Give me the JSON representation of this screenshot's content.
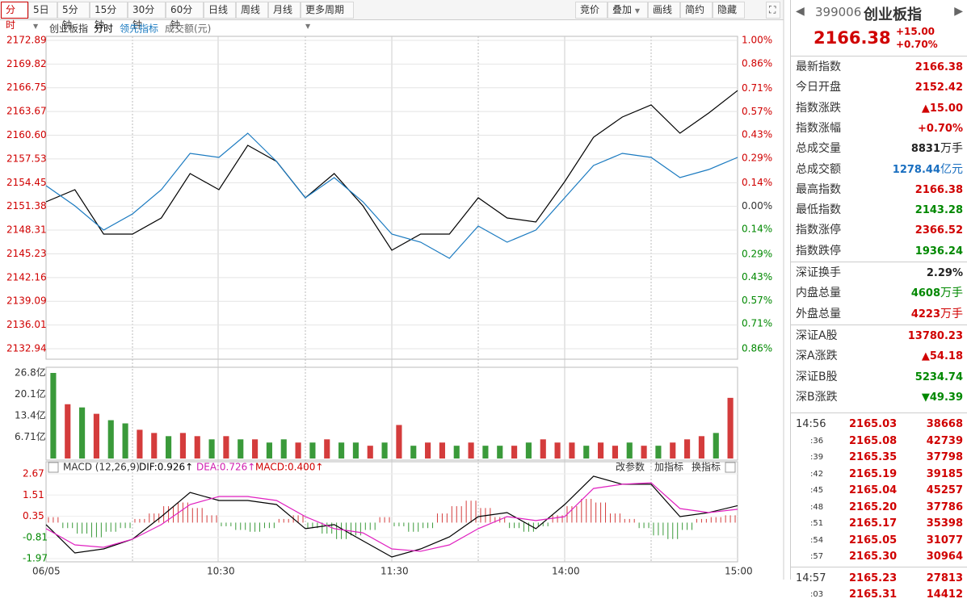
{
  "toolbar": {
    "periods": [
      "分时",
      "5日",
      "5分钟",
      "15分钟",
      "30分钟",
      "60分钟",
      "日线",
      "周线",
      "月线",
      "更多周期"
    ],
    "tools": [
      "竞价",
      "叠加",
      "画线",
      "简约",
      "隐藏"
    ]
  },
  "chart": {
    "legend": [
      "创业板指",
      "分时",
      "领先指标",
      "成交额(元)"
    ],
    "price": {
      "ylim": [
        2132.94,
        2172.89
      ],
      "yticks": [
        2172.89,
        2169.82,
        2166.75,
        2163.67,
        {
          "value": 2160.6,
          "label": "2160.60"
        },
        2157.53,
        2154.45,
        2151.38,
        2148.31,
        2145.23,
        2142.16,
        2139.09,
        2136.01,
        2132.94
      ],
      "y2lim": [
        -0.86,
        1.0
      ],
      "y2ticks": [
        {
          "value": 1.0,
          "label": "1.00%"
        },
        {
          "value": 0.86,
          "label": "0.86%"
        },
        {
          "value": 0.71,
          "label": "0.71%"
        },
        {
          "value": 0.57,
          "label": "0.57%"
        },
        {
          "value": 0.43,
          "label": "0.43%"
        },
        {
          "value": 0.29,
          "label": "0.29%"
        },
        {
          "value": 0.14,
          "label": "0.14%"
        },
        {
          "value": 0,
          "label": "0.00%"
        },
        {
          "value": -0.14,
          "label": "0.14%"
        },
        {
          "value": -0.29,
          "label": "0.29%"
        },
        {
          "value": -0.43,
          "label": "0.43%"
        },
        {
          "value": -0.57,
          "label": "0.57%"
        },
        {
          "value": -0.71,
          "label": "0.71%"
        },
        {
          "value": -0.86,
          "label": "0.86%"
        }
      ],
      "series": [
        {
          "name": "分时",
          "color": "#000000",
          "values": [
            2151.97,
            2153.54,
            2147.79,
            2147.79,
            2149.88,
            2155.63,
            2153.54,
            2159.29,
            2157.2,
            2152.5,
            2155.63,
            2151.45,
            2145.7,
            2147.79,
            2147.79,
            2152.5,
            2149.88,
            2149.36,
            2154.59,
            2160.34,
            2162.95,
            2164.52,
            2160.86,
            2163.48,
            2166.38
          ]
        },
        {
          "name": "领先指标",
          "color": "#1a7ac0",
          "values": [
            2154.07,
            2151.45,
            2148.31,
            2150.41,
            2153.54,
            2158.25,
            2157.73,
            2160.86,
            2157.2,
            2152.5,
            2155.11,
            2151.97,
            2147.79,
            2146.74,
            2144.65,
            2148.84,
            2146.74,
            2148.31,
            2152.5,
            2156.68,
            2158.25,
            2157.73,
            2155.11,
            2156.16,
            2157.73
          ]
        }
      ]
    },
    "volume": {
      "ylim": [
        0,
        26.8
      ],
      "yticks": [
        {
          "value": 26.8,
          "label": "26.8亿"
        },
        {
          "value": 20.1,
          "label": "20.1亿"
        },
        {
          "value": 13.4,
          "label": "13.4亿"
        },
        {
          "value": 6.71,
          "label": "6.71亿"
        }
      ],
      "values": [
        26.8,
        17,
        16,
        14,
        12,
        11,
        9,
        8,
        7,
        8,
        7,
        6,
        7,
        6,
        6,
        5,
        6,
        5,
        5,
        6,
        5,
        5,
        4,
        5,
        10.5,
        4,
        5,
        5,
        4,
        5,
        4,
        4,
        4,
        5,
        6,
        5,
        5,
        4,
        5,
        4,
        5,
        4,
        4,
        5,
        6,
        7,
        8,
        19
      ],
      "colors": [
        "#3a9a3a",
        "#d43c3c",
        "#3a9a3a",
        "#d43c3c",
        "#3a9a3a",
        "#3a9a3a",
        "#d43c3c",
        "#d43c3c",
        "#3a9a3a",
        "#d43c3c",
        "#d43c3c",
        "#3a9a3a",
        "#d43c3c",
        "#3a9a3a",
        "#d43c3c",
        "#3a9a3a",
        "#3a9a3a",
        "#d43c3c",
        "#3a9a3a",
        "#d43c3c",
        "#3a9a3a",
        "#3a9a3a",
        "#d43c3c",
        "#3a9a3a",
        "#d43c3c",
        "#3a9a3a",
        "#d43c3c",
        "#d43c3c",
        "#3a9a3a",
        "#d43c3c",
        "#3a9a3a",
        "#3a9a3a",
        "#d43c3c",
        "#3a9a3a",
        "#d43c3c",
        "#d43c3c",
        "#d43c3c",
        "#3a9a3a",
        "#d43c3c",
        "#d43c3c",
        "#3a9a3a",
        "#d43c3c",
        "#3a9a3a",
        "#d43c3c",
        "#d43c3c",
        "#d43c3c",
        "#3a9a3a",
        "#d43c3c"
      ]
    },
    "macd": {
      "title": "MACD (12,26,9)",
      "dif_label": "DIF:0.926↑",
      "dea_label": "DEA:0.726↑",
      "macd_label": "MACD:0.400↑",
      "buttons": [
        "改参数",
        "加指标",
        "换指标"
      ],
      "ylim": [
        -1.97,
        2.67
      ],
      "yticks": [
        2.67,
        1.51,
        0.35,
        -0.81,
        -1.97
      ],
      "pos_color": "#d43c3c",
      "neg_color": "#3a9a3a",
      "hist": [
        0.3,
        -0.3,
        -0.6,
        -0.8,
        -0.5,
        -0.3,
        0.2,
        0.5,
        0.9,
        1.1,
        0.8,
        0.4,
        -0.2,
        -0.4,
        -0.5,
        -0.3,
        0.2,
        0.4,
        -0.3,
        -0.6,
        -0.9,
        -0.7,
        -0.4,
        0.3,
        -0.2,
        -0.5,
        -0.3,
        0.5,
        0.9,
        1.2,
        0.8,
        0.3,
        -0.3,
        -0.5,
        -0.2,
        0.4,
        0.9,
        1.3,
        1.1,
        0.5,
        0.2,
        -0.3,
        -0.7,
        -0.9,
        -0.4,
        0.2,
        0.3,
        0.4
      ],
      "series": [
        {
          "name": "DIF",
          "color": "#000000",
          "values": [
            -0.11,
            -1.66,
            -1.44,
            -0.91,
            0.33,
            1.65,
            1.21,
            1.21,
            0.99,
            -0.33,
            -0.11,
            -1.0,
            -1.88,
            -1.44,
            -0.78,
            0.33,
            0.55,
            -0.33,
            0.99,
            2.54,
            2.1,
            2.1,
            0.33,
            0.55,
            0.93
          ]
        },
        {
          "name": "DEA",
          "color": "#e020c0",
          "values": [
            -0.33,
            -1.22,
            -1.35,
            -0.91,
            -0.11,
            0.99,
            1.43,
            1.43,
            1.21,
            0.33,
            -0.33,
            -0.56,
            -1.44,
            -1.57,
            -1.22,
            -0.33,
            0.33,
            0.11,
            0.33,
            1.87,
            2.1,
            2.18,
            0.77,
            0.55,
            0.73
          ]
        }
      ]
    },
    "x_labels": [
      "06/05",
      "10:30",
      "11:30",
      "14:00",
      "15:00"
    ]
  },
  "quote": {
    "code": "399006",
    "name": "创业板指",
    "price": "2166.38",
    "change": "+15.00",
    "change_pct": "+0.70%"
  },
  "stats": [
    [
      {
        "label": "最新指数",
        "value": "2166.38",
        "color": "#d00000"
      },
      {
        "label": "今日开盘",
        "value": "2152.42",
        "color": "#d00000"
      },
      {
        "label": "指数涨跌",
        "value": "▲15.00",
        "color": "#d00000"
      },
      {
        "label": "指数涨幅",
        "value": "+0.70%",
        "color": "#d00000"
      },
      {
        "label": "总成交量",
        "value": "8831",
        "unit": "万手",
        "color": "#222222"
      },
      {
        "label": "总成交额",
        "value": "1278.44",
        "unit": "亿元",
        "color": "#1a6fc0"
      },
      {
        "label": "最高指数",
        "value": "2166.38",
        "color": "#d00000"
      },
      {
        "label": "最低指数",
        "value": "2143.28",
        "color": "#008800"
      },
      {
        "label": "指数涨停",
        "value": "2366.52",
        "color": "#d00000"
      },
      {
        "label": "指数跌停",
        "value": "1936.24",
        "color": "#008800"
      }
    ],
    [
      {
        "label": "深证换手",
        "value": "2.29%",
        "color": "#222222"
      },
      {
        "label": "内盘总量",
        "value": "4608",
        "unit": "万手",
        "color": "#008800"
      },
      {
        "label": "外盘总量",
        "value": "4223",
        "unit": "万手",
        "color": "#d00000"
      }
    ],
    [
      {
        "label": "深证A股",
        "value": "13780.23",
        "color": "#d00000"
      },
      {
        "label": "深A涨跌",
        "value": "▲54.18",
        "color": "#d00000"
      },
      {
        "label": "深证B股",
        "value": "5234.74",
        "color": "#008800"
      },
      {
        "label": "深B涨跌",
        "value": "▼49.39",
        "color": "#008800"
      }
    ]
  ],
  "ticks": [
    [
      {
        "time": "14:56",
        "price": "2165.03",
        "vol": "38668"
      },
      {
        "time": ":36",
        "price": "2165.08",
        "vol": "42739"
      },
      {
        "time": ":39",
        "price": "2165.35",
        "vol": "37798"
      },
      {
        "time": ":42",
        "price": "2165.19",
        "vol": "39185"
      },
      {
        "time": ":45",
        "price": "2165.04",
        "vol": "45257"
      },
      {
        "time": ":48",
        "price": "2165.20",
        "vol": "37786"
      },
      {
        "time": ":51",
        "price": "2165.17",
        "vol": "35398"
      },
      {
        "time": ":54",
        "price": "2165.05",
        "vol": "31077"
      },
      {
        "time": ":57",
        "price": "2165.30",
        "vol": "30964"
      }
    ],
    [
      {
        "time": "14:57",
        "price": "2165.23",
        "vol": "27813"
      },
      {
        "time": ":03",
        "price": "2165.31",
        "vol": "14412"
      }
    ]
  ]
}
